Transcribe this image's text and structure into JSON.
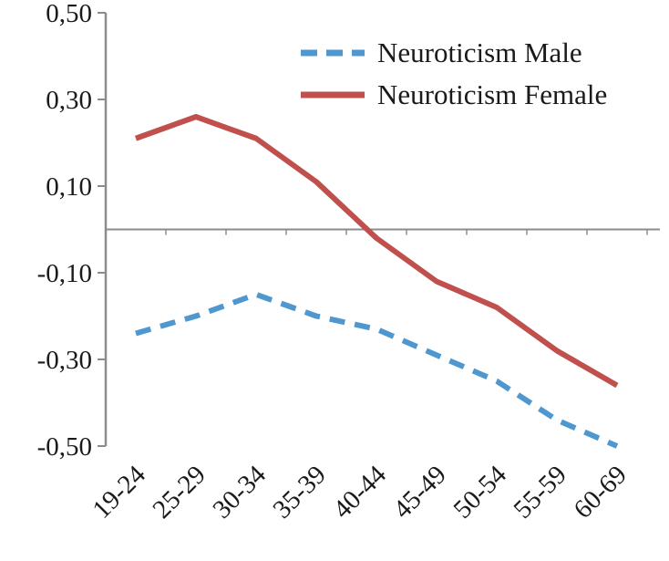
{
  "chart_data": {
    "type": "line",
    "title": "",
    "xlabel": "",
    "ylabel": "",
    "categories": [
      "19-24",
      "25-29",
      "30-34",
      "35-39",
      "40-44",
      "45-49",
      "50-54",
      "55-59",
      "60-69"
    ],
    "series": [
      {
        "name": "Neuroticism Male",
        "color": "#4f97cf",
        "dashed": true,
        "values": [
          -0.24,
          -0.2,
          -0.15,
          -0.2,
          -0.23,
          -0.29,
          -0.35,
          -0.44,
          -0.5
        ]
      },
      {
        "name": "Neuroticism Female",
        "color": "#c0504d",
        "dashed": false,
        "values": [
          0.21,
          0.26,
          0.21,
          0.11,
          -0.02,
          -0.12,
          -0.18,
          -0.28,
          -0.36
        ]
      }
    ],
    "ylim": [
      -0.5,
      0.5
    ],
    "yticks": [
      0.5,
      0.3,
      0.1,
      -0.1,
      -0.3,
      -0.5
    ],
    "ytick_labels": [
      "0,50",
      "0,30",
      "0,10",
      "-0,10",
      "-0,30",
      "-0,50"
    ],
    "legend_position": "top-center-right",
    "grid": false,
    "axis_color": "#8c8c8c",
    "text_color": "#1a1a1a"
  }
}
